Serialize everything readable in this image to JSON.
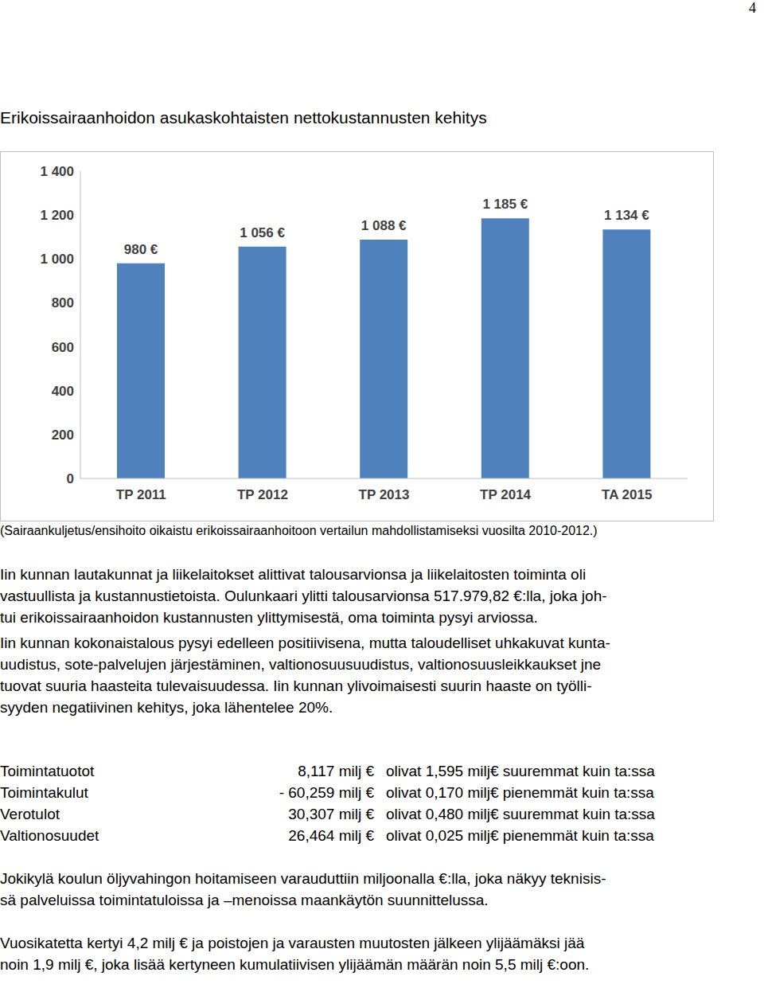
{
  "page_number": "4",
  "title": "Erikoissairaanhoidon asukaskohtaisten nettokustannusten kehitys",
  "chart_data": {
    "type": "bar",
    "categories": [
      "TP 2011",
      "TP 2012",
      "TP 2013",
      "TP 2014",
      "TA 2015"
    ],
    "values": [
      980,
      1056,
      1088,
      1185,
      1134
    ],
    "value_labels": [
      "980 €",
      "1 056 €",
      "1 088 €",
      "1 185 €",
      "1 134 €"
    ],
    "data_labels": true,
    "color": "#4f81bd",
    "ylim": [
      0,
      1400
    ],
    "yticks": [
      0,
      200,
      400,
      600,
      800,
      {
        "value": 1000,
        "label": "1 000"
      },
      {
        "value": 1200,
        "label": "1 200"
      },
      {
        "value": 1400,
        "label": "1 400"
      }
    ],
    "grid": false
  },
  "caption": "(Sairaankuljetus/ensihoito oikaistu erikoissairaanhoitoon vertailun mahdollistamiseksi vuosilta 2010-2012.)",
  "paragraphs_before": [
    [
      "Iin kunnan lautakunnat ja liikelaitokset alittivat talousarvionsa ja liikelaitosten toiminta oli",
      "vastuullista ja kustannustietoista. Oulunkaari ylitti talousarvionsa 517.979,82 €:lla, joka joh-",
      "tui erikoissairaanhoidon kustannusten ylittymisestä, oma toiminta pysyi arviossa."
    ],
    [
      "Iin kunnan kokonaistalous pysyi edelleen positiivisena, mutta taloudelliset uhkakuvat kunta-",
      "uudistus, sote-palvelujen järjestäminen, valtionosuusuudistus, valtionosuusleikkaukset jne",
      "tuovat suuria haasteita tulevaisuudessa. Iin kunnan ylivoimaisesti suurin haaste on työlli-",
      "syyden negatiivinen kehitys, joka lähentelee 20%."
    ]
  ],
  "table": {
    "rows": [
      [
        "Toimintatuotot",
        "8,117 milj €",
        "olivat 1,595 milj€ suuremmat kuin ta:ssa"
      ],
      [
        "Toimintakulut",
        "- 60,259 milj €",
        "olivat 0,170 milj€ pienemmät kuin ta:ssa"
      ],
      [
        "Verotulot",
        "30,307 milj €",
        "olivat 0,480 milj€ suuremmat kuin ta:ssa"
      ],
      [
        "Valtionosuudet",
        "26,464 milj €",
        "olivat 0,025 milj€ pienemmät kuin ta:ssa"
      ]
    ]
  },
  "paragraphs_after": [
    [
      "Jokikylä koulun öljyvahingon hoitamiseen varauduttiin miljoonalla €:lla, joka näkyy teknisis-",
      "sä palveluissa toimintatuloissa ja –menoissa maankäytön suunnittelussa."
    ],
    [
      "Vuosikatetta kertyi 4,2 milj € ja poistojen ja varausten muutosten jälkeen ylijäämäksi jää",
      "noin 1,9 milj €, joka lisää kertyneen kumulatiivisen ylijäämän määrän noin 5,5 milj €:oon."
    ]
  ]
}
